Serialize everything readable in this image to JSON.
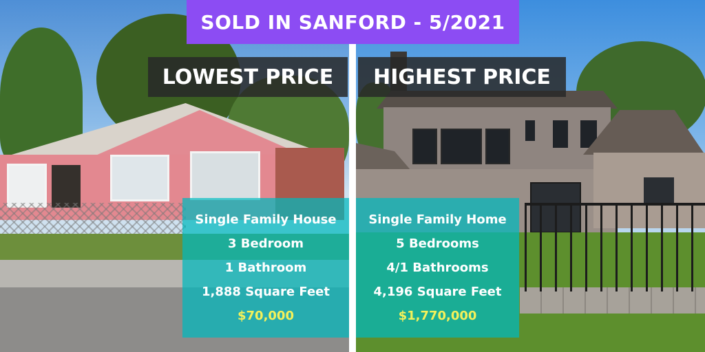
{
  "banner": {
    "title": "SOLD IN SANFORD - 5/2021"
  },
  "lowest": {
    "heading": "LOWEST PRICE",
    "type": "Single Family House",
    "bedrooms": "3 Bedroom",
    "bathrooms": "1 Bathroom",
    "area": "1,888 Square Feet",
    "price": "$70,000"
  },
  "highest": {
    "heading": "HIGHEST PRICE",
    "type": "Single Family Home",
    "bedrooms": "5 Bedrooms",
    "bathrooms": "4/1 Bathrooms",
    "area": "4,196 Square Feet",
    "price": "$1,770,000"
  },
  "colors": {
    "banner_purple": "#8c4cf3",
    "label_dark": "#282828",
    "panel_teal": "#00b9be",
    "price_yellow": "#f4f15a"
  }
}
